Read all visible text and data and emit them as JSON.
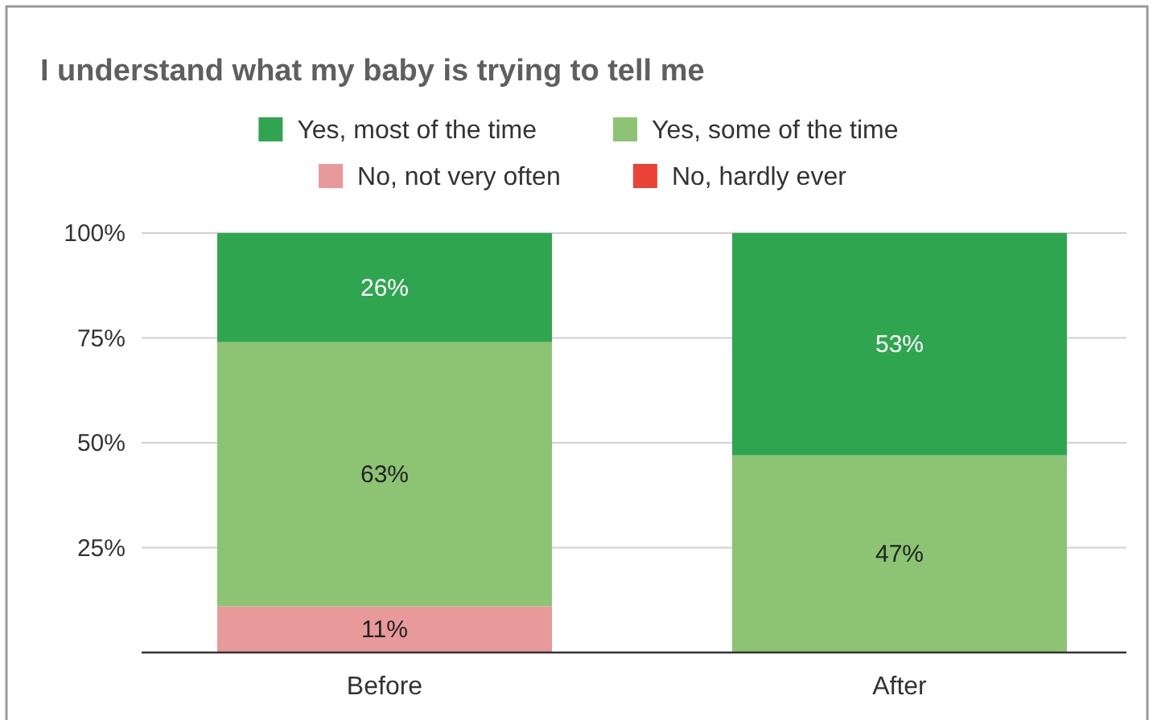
{
  "chart_data": {
    "type": "bar",
    "title": "I understand what my baby is trying to tell me",
    "stacked": true,
    "categories": [
      "Before",
      "After"
    ],
    "series": [
      {
        "name": "No, hardly ever",
        "color": "#ea4335",
        "values": [
          0,
          0
        ],
        "value_labels": [
          null,
          null
        ]
      },
      {
        "name": "No, not very often",
        "color": "#e8999a",
        "values": [
          11,
          0
        ],
        "value_labels": [
          "11%",
          null
        ]
      },
      {
        "name": "Yes, some of the time",
        "color": "#8cc474",
        "values": [
          63,
          47
        ],
        "value_labels": [
          "63%",
          "47%"
        ]
      },
      {
        "name": "Yes, most of the time",
        "color": "#30a550",
        "values": [
          26,
          53
        ],
        "value_labels": [
          "26%",
          "53%"
        ]
      }
    ],
    "ylim": [
      0,
      100
    ],
    "yticks": [
      {
        "value": 25,
        "label": "25%"
      },
      {
        "value": 50,
        "label": "50%"
      },
      {
        "value": 75,
        "label": "75%"
      },
      {
        "value": 100,
        "label": "100%"
      }
    ],
    "grid": "y",
    "legend": "top"
  }
}
